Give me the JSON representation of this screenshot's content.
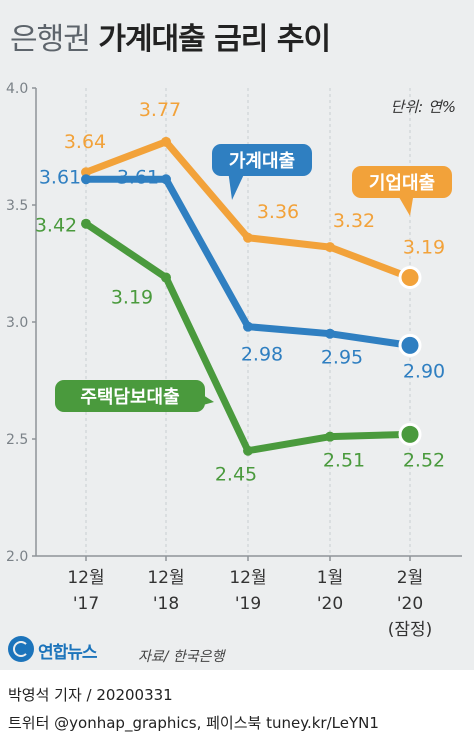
{
  "title": {
    "light": "은행권",
    "bold": "가계대출 금리 추이"
  },
  "unit": "단위: 연%",
  "source": "자료/ 한국은행",
  "logo": "연합뉴스",
  "credit": {
    "line1": "박영석 기자 / 20200331",
    "line2": "트위터 @yonhap_graphics, 페이스북 tuney.kr/LeYN1"
  },
  "colors": {
    "corporate": "#f2a23a",
    "household": "#2f7fc1",
    "mortgage": "#4a9a3d",
    "axis": "#8e9499"
  },
  "chart_data": {
    "type": "line",
    "categories": [
      [
        "12월",
        "'17"
      ],
      [
        "12월",
        "'18"
      ],
      [
        "12월",
        "'19"
      ],
      [
        "1월",
        "'20"
      ],
      [
        "2월",
        "'20",
        "(잠정)"
      ]
    ],
    "ylim": [
      2.0,
      4.0
    ],
    "yticks": [
      "2.0",
      "2.5",
      "3.0",
      "3.5",
      "4.0"
    ],
    "series": [
      {
        "key": "corporate",
        "name": "기업대출",
        "values": [
          3.64,
          3.77,
          3.36,
          3.32,
          3.19
        ],
        "labels": [
          "3.64",
          "3.77",
          "3.36",
          "3.32",
          "3.19"
        ]
      },
      {
        "key": "household",
        "name": "가계대출",
        "values": [
          3.61,
          3.61,
          2.98,
          2.95,
          2.9
        ],
        "labels": [
          "3.61",
          "3.61",
          "2.98",
          "2.95",
          "2.90"
        ]
      },
      {
        "key": "mortgage",
        "name": "주택담보대출",
        "values": [
          3.42,
          3.19,
          2.45,
          2.51,
          2.52
        ],
        "labels": [
          "3.42",
          "3.19",
          "2.45",
          "2.51",
          "2.52"
        ]
      }
    ]
  }
}
